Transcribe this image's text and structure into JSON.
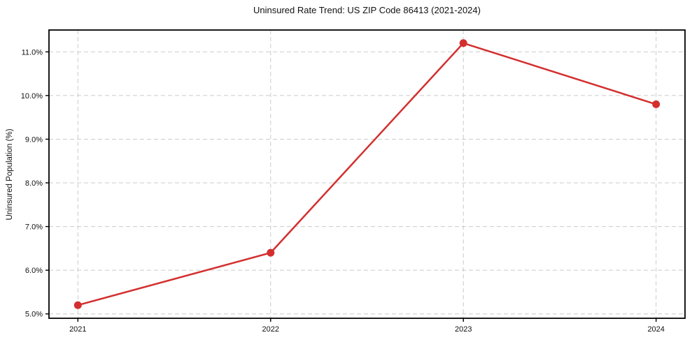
{
  "figure": {
    "background": "#ffffff"
  },
  "chart_data": {
    "type": "line",
    "title": "Uninsured Rate Trend: US ZIP Code 86413 (2021-2024)",
    "xlabel": "",
    "ylabel": "Uninsured Population (%)",
    "categories": [
      "2021",
      "2022",
      "2023",
      "2024"
    ],
    "x": [
      2021,
      2022,
      2023,
      2024
    ],
    "series": [
      {
        "name": "Uninsured rate",
        "values": [
          5.2,
          6.4,
          11.2,
          9.8
        ]
      }
    ],
    "unit": "%",
    "xlim": [
      2020.85,
      2024.15
    ],
    "ylim": [
      4.9,
      11.5
    ],
    "xticks": [
      2021,
      2022,
      2023,
      2024
    ],
    "xtick_labels": [
      "2021",
      "2022",
      "2023",
      "2024"
    ],
    "yticks": [
      5.0,
      6.0,
      7.0,
      8.0,
      9.0,
      10.0,
      11.0
    ],
    "ytick_labels": [
      "5.0%",
      "6.0%",
      "7.0%",
      "8.0%",
      "9.0%",
      "10.0%",
      "11.0%"
    ],
    "grid": true,
    "grid_style": "dashed",
    "legend": "none",
    "colors": {
      "line": "#d32f2f",
      "marker": "#d32f2f",
      "grid": "#cbcbcb",
      "spine": "#000000",
      "text": "#111111"
    }
  }
}
